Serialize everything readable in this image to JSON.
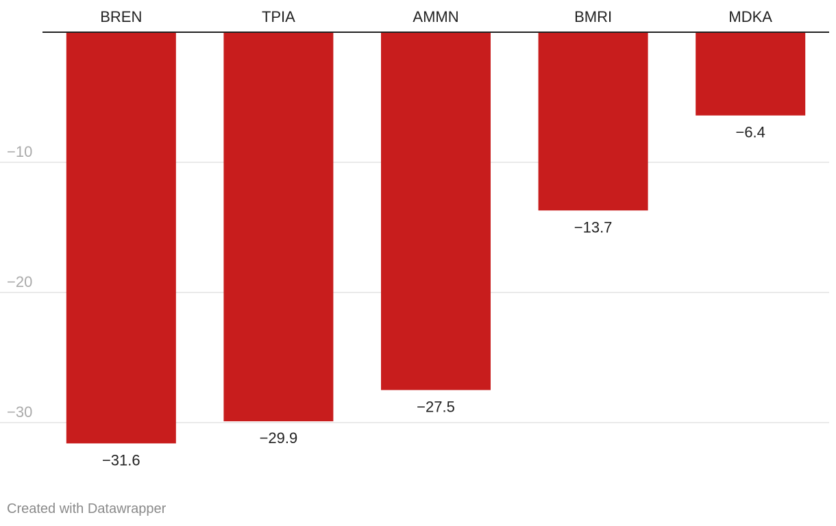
{
  "chart_data": {
    "type": "bar",
    "orientation": "vertical",
    "categories": [
      "BREN",
      "TPIA",
      "AMMN",
      "BMRI",
      "MDKA"
    ],
    "values": [
      -31.6,
      -29.9,
      -27.5,
      -13.7,
      -6.4
    ],
    "data_labels": [
      "−31.6",
      "−29.9",
      "−27.5",
      "−13.7",
      "−6.4"
    ],
    "ylim": [
      -33,
      0
    ],
    "yticks": [
      -10,
      -20,
      -30
    ],
    "ytick_labels": [
      "−10",
      "−20",
      "−30"
    ],
    "category_axis_position": "top",
    "grid": true,
    "bar_color": "#c81d1d",
    "grid_color": "#e3e3e3",
    "axis_color": "#222222"
  },
  "footer": {
    "credit": "Created with Datawrapper"
  }
}
